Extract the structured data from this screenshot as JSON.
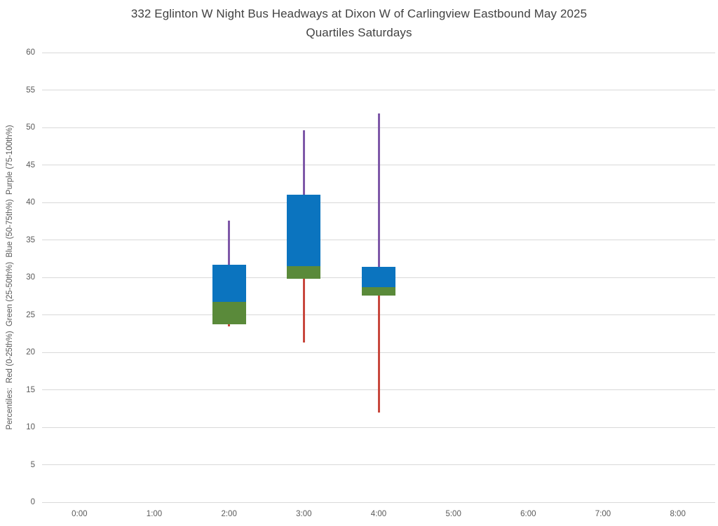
{
  "title": {
    "line1": "332 Eglinton W Night Bus Headways at Dixon W of Carlingview Eastbound May 2025",
    "line2": "Quartiles Saturdays"
  },
  "chart_data": {
    "type": "box",
    "title": "332 Eglinton W Night Bus Headways at Dixon W of Carlingview Eastbound May 2025 Quartiles Saturdays",
    "xlabel": "",
    "ylabel": "Percentiles:  Red (0-25th%)  Green (25-50th%)  Blue (50-75th%)  Purple (75-100th%)",
    "ylim": [
      0,
      60
    ],
    "y_ticks": [
      0,
      5,
      10,
      15,
      20,
      25,
      30,
      35,
      40,
      45,
      50,
      55,
      60
    ],
    "grid": true,
    "legend_position": "none",
    "categories": [
      "0:00",
      "1:00",
      "2:00",
      "3:00",
      "4:00",
      "5:00",
      "6:00",
      "7:00",
      "8:00"
    ],
    "boxes": [
      {
        "category": "2:00",
        "min": 23.5,
        "q1": 23.7,
        "median": 26.7,
        "q3": 31.7,
        "max": 37.6
      },
      {
        "category": "3:00",
        "min": 21.3,
        "q1": 29.8,
        "median": 31.5,
        "q3": 41.0,
        "max": 49.6
      },
      {
        "category": "4:00",
        "min": 12.0,
        "q1": 27.6,
        "median": 28.7,
        "q3": 31.4,
        "max": 51.9
      }
    ],
    "segment_colors": {
      "p0_25_red": "#c8473d",
      "p25_50_green": "#5a8a3a",
      "p50_75_blue": "#0b74bf",
      "p75_100_purple": "#7e58a8"
    },
    "gridline_color": "#d9d9d9",
    "title_color": "#424242",
    "axis_text_color": "#595959"
  }
}
